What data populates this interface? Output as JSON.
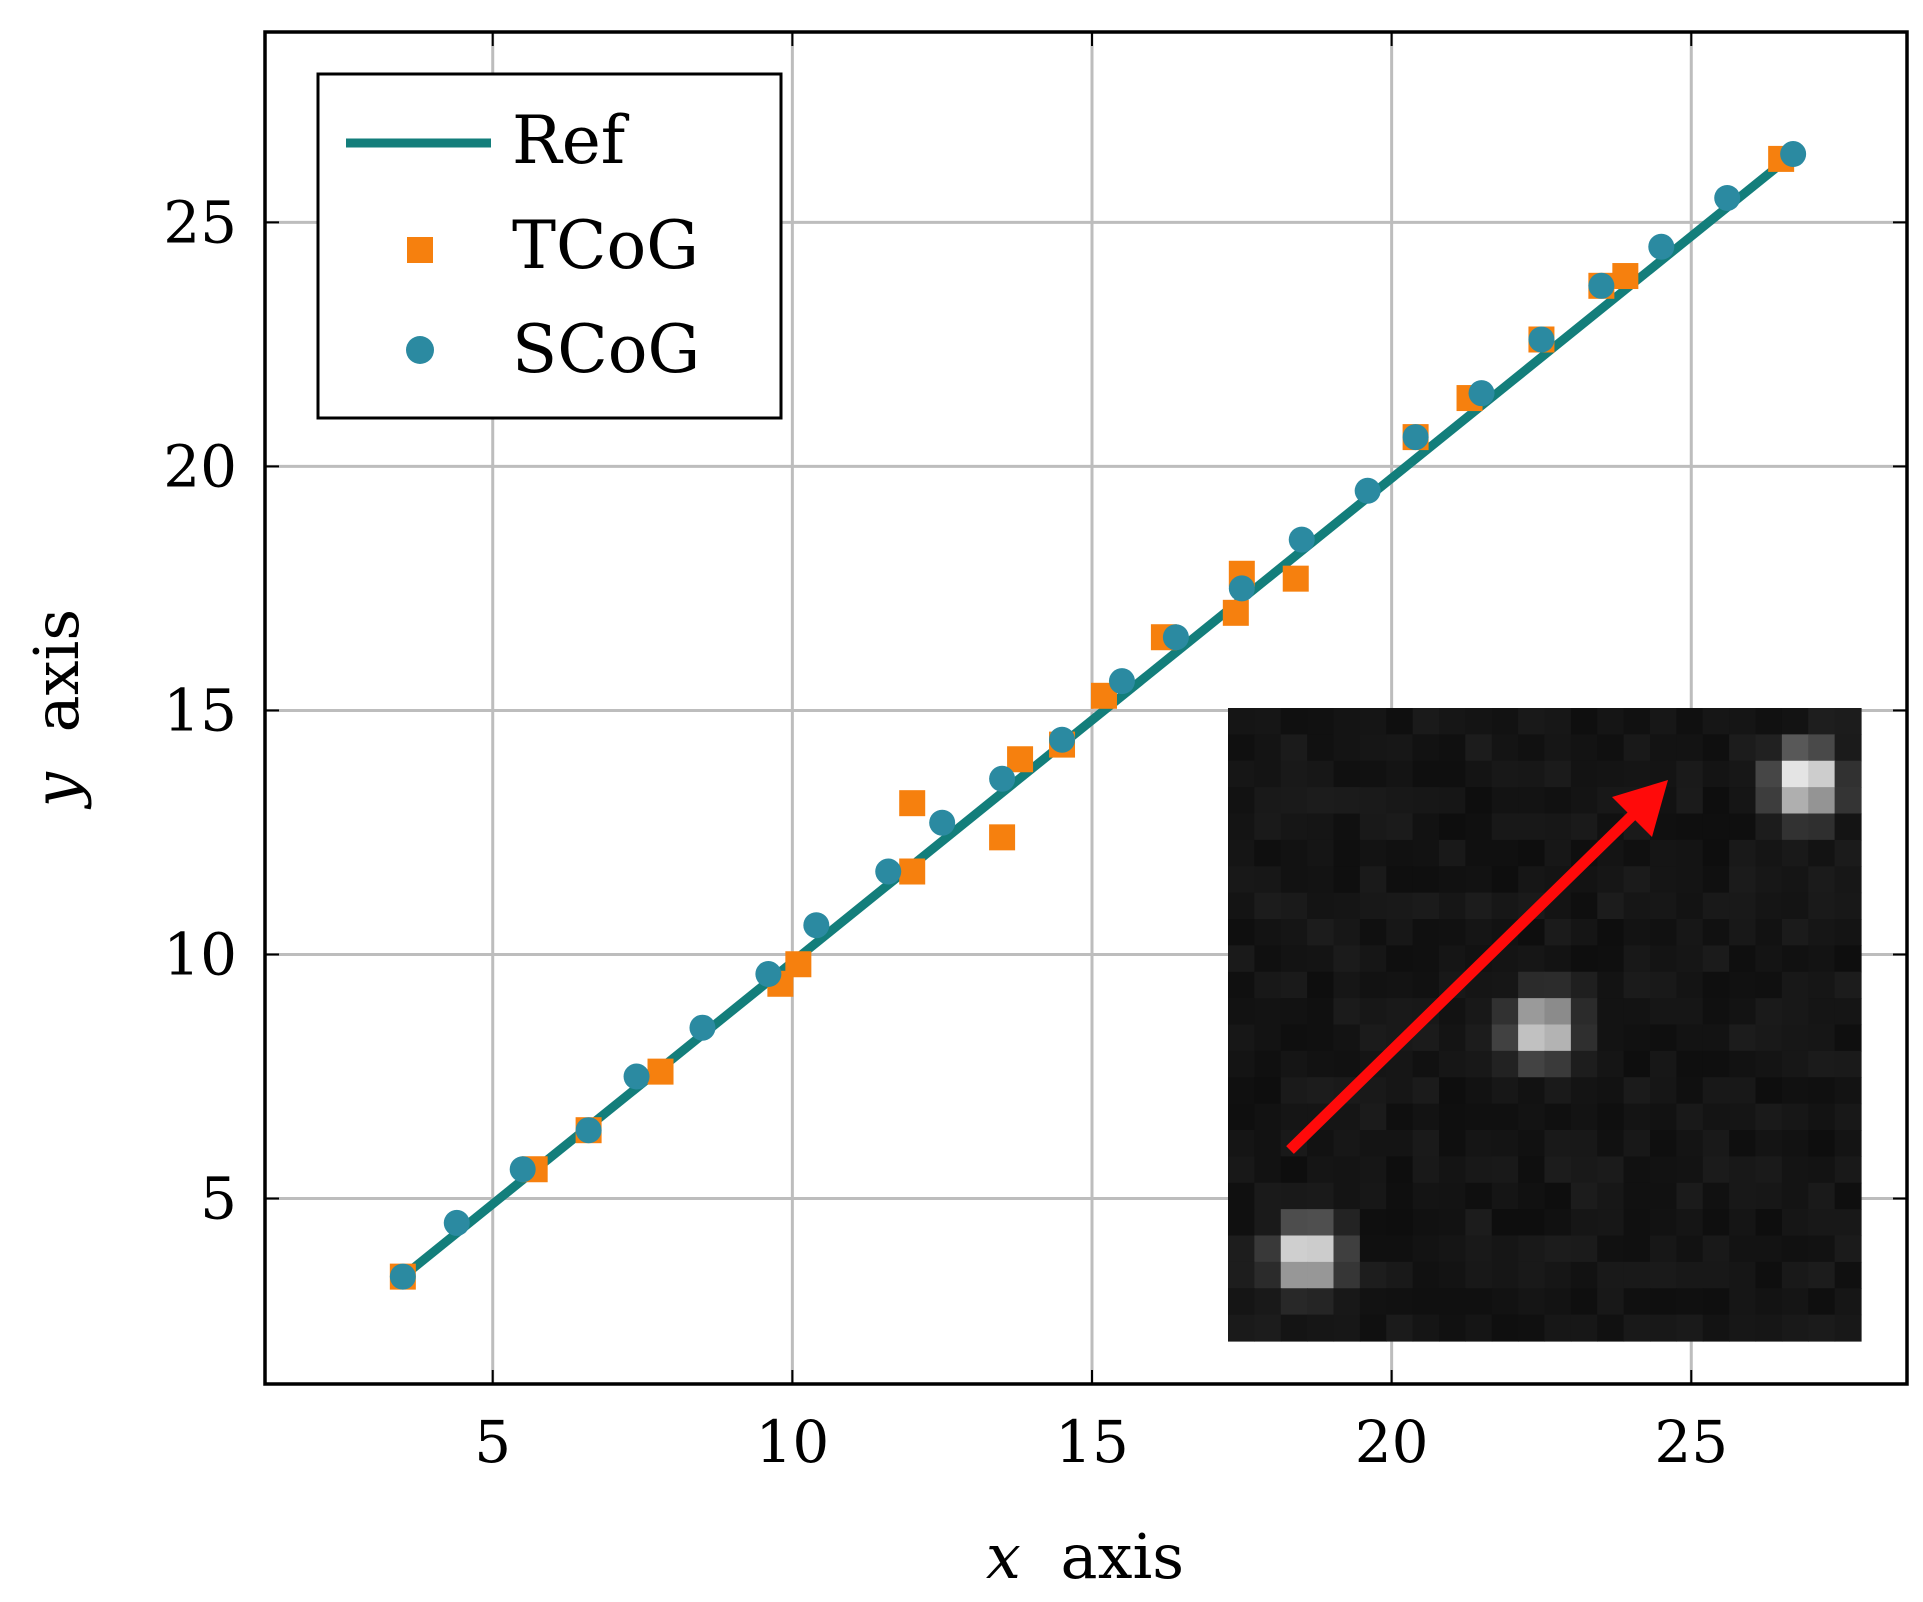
{
  "chart_data": {
    "type": "scatter",
    "xlabel_var": "x",
    "xlabel_rest": "axis",
    "ylabel_var": "y",
    "ylabel_rest": "axis",
    "xlim": [
      1.2,
      28.6
    ],
    "ylim": [
      1.2,
      28.9
    ],
    "xticks": [
      5,
      10,
      15,
      20,
      25
    ],
    "yticks": [
      5,
      10,
      15,
      20,
      25
    ],
    "grid": true,
    "legend_position": "top-left",
    "colors": {
      "ref": "#137e7b",
      "tcog": "#f6800e",
      "scog": "#2b8aa1"
    },
    "series": [
      {
        "name": "Ref",
        "kind": "line",
        "x": [
          3.5,
          26.7
        ],
        "y": [
          3.4,
          26.4
        ]
      },
      {
        "name": "TCoG",
        "kind": "marker-square",
        "x": [
          3.5,
          5.7,
          6.6,
          7.8,
          9.8,
          10.1,
          12.0,
          12.0,
          13.5,
          13.8,
          14.5,
          15.2,
          16.2,
          17.4,
          17.5,
          18.4,
          20.4,
          21.3,
          22.5,
          23.5,
          23.9,
          26.5
        ],
        "y": [
          3.4,
          5.6,
          6.4,
          7.6,
          9.4,
          9.8,
          13.1,
          11.7,
          12.4,
          14.0,
          14.3,
          15.3,
          16.5,
          17.0,
          17.8,
          17.7,
          20.6,
          21.4,
          22.6,
          23.7,
          23.9,
          26.3
        ]
      },
      {
        "name": "SCoG",
        "kind": "marker-circle",
        "x": [
          3.5,
          4.4,
          5.5,
          6.6,
          7.4,
          8.5,
          9.6,
          10.4,
          11.6,
          12.5,
          13.5,
          14.5,
          15.5,
          16.4,
          17.5,
          18.5,
          19.6,
          20.4,
          21.5,
          22.5,
          23.5,
          24.5,
          25.6,
          26.7
        ],
        "y": [
          3.4,
          4.5,
          5.6,
          6.4,
          7.5,
          8.5,
          9.6,
          10.6,
          11.7,
          12.7,
          13.6,
          14.4,
          15.6,
          16.5,
          17.5,
          18.5,
          19.5,
          20.6,
          21.5,
          22.6,
          23.7,
          24.5,
          25.5,
          26.4
        ]
      }
    ],
    "inset": {
      "description_kind": "grayscale pixel image",
      "background": "#0a0a0a",
      "arrow_color": "#ff0a0a"
    }
  }
}
